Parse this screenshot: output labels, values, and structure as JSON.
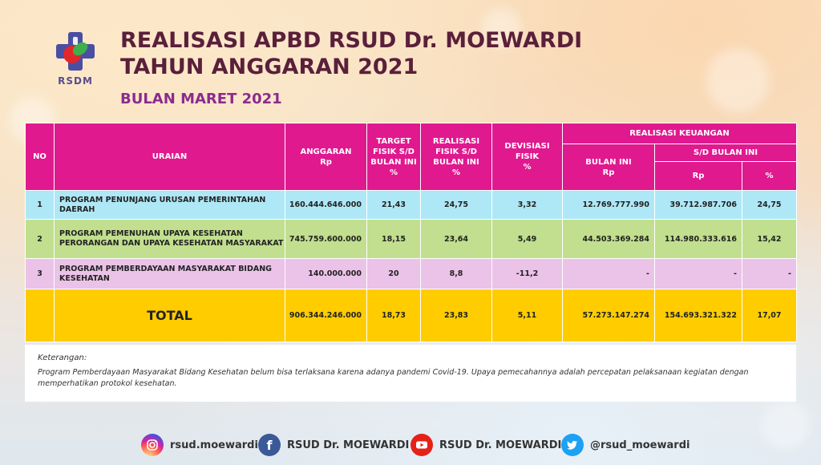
{
  "logo": {
    "text": "RSDM"
  },
  "header": {
    "title_line1": "REALISASI APBD RSUD Dr. MOEWARDI",
    "title_line2": "TAHUN ANGGARAN 2021",
    "subtitle": "BULAN MARET 2021"
  },
  "table": {
    "headers": {
      "no": "NO",
      "uraian": "URAIAN",
      "anggaran": "ANGGARAN",
      "anggaran_unit": "Rp",
      "target": "TARGET FISIK S/D BULAN INI",
      "target_unit": "%",
      "realisasi_fisik": "REALISASI FISIK S/D BULAN INI",
      "realisasi_fisik_unit": "%",
      "deviasi": "DEVISIASI FISIK",
      "deviasi_unit": "%",
      "realisasi_keuangan": "REALISASI KEUANGAN",
      "bulan_ini": "BULAN INI",
      "bulan_ini_unit": "Rp",
      "sd_bulan_ini": "S/D BULAN INI",
      "sd_rp": "Rp",
      "sd_pct": "%"
    },
    "rows": [
      {
        "no": "1",
        "uraian": "PROGRAM PENUNJANG URUSAN PEMERINTAHAN DAERAH",
        "anggaran": "160.444.646.000",
        "target": "21,43",
        "realisasi_fisik": "24,75",
        "deviasi": "3,32",
        "bulan_ini": "12.769.777.990",
        "sd_rp": "39.712.987.706",
        "sd_pct": "24,75"
      },
      {
        "no": "2",
        "uraian": "PROGRAM PEMENUHAN UPAYA KESEHATAN PERORANGAN DAN UPAYA KESEHATAN MASYARAKAT",
        "anggaran": "745.759.600.000",
        "target": "18,15",
        "realisasi_fisik": "23,64",
        "deviasi": "5,49",
        "bulan_ini": "44.503.369.284",
        "sd_rp": "114.980.333.616",
        "sd_pct": "15,42"
      },
      {
        "no": "3",
        "uraian": "PROGRAM PEMBERDAYAAN MASYARAKAT BIDANG KESEHATAN",
        "anggaran": "140.000.000",
        "target": "20",
        "realisasi_fisik": "8,8",
        "deviasi": "-11,2",
        "bulan_ini": "-",
        "sd_rp": "-",
        "sd_pct": "-"
      }
    ],
    "total": {
      "label": "TOTAL",
      "anggaran": "906.344.246.000",
      "target": "18,73",
      "realisasi_fisik": "23,83",
      "deviasi": "5,11",
      "bulan_ini": "57.273.147.274",
      "sd_rp": "154.693.321.322",
      "sd_pct": "17,07"
    }
  },
  "notes": {
    "heading": "Keterangan:",
    "text": "Program Pemberdayaan Masyarakat Bidang Kesehatan belum bisa terlaksana karena adanya pandemi Covid-19. Upaya pemecahannya adalah percepatan pelaksanaan kegiatan dengan memperhatikan protokol kesehatan."
  },
  "social": {
    "instagram": "rsud.moewardi",
    "facebook": "RSUD Dr. MOEWARDI",
    "youtube": "RSUD Dr. MOEWARDI",
    "twitter": "@rsud_moewardi"
  },
  "colors": {
    "header_magenta": "#e0198f",
    "row1": "#aee8f6",
    "row2": "#c1df8e",
    "row3": "#ebc2e8",
    "total": "#ffcc00",
    "title": "#5a1f3a",
    "subtitle": "#8c2b8f"
  }
}
